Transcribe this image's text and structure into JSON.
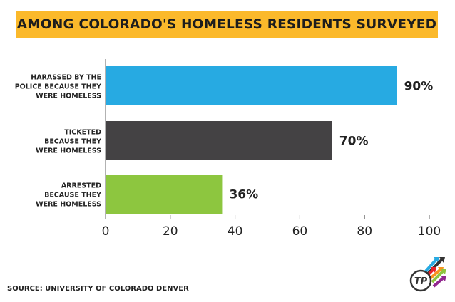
{
  "chart_data": {
    "type": "bar",
    "orientation": "horizontal",
    "title": "AMONG COLORADO'S HOMELESS RESIDENTS SURVEYED",
    "categories": [
      [
        "HARASSED BY THE",
        "POLICE  BECAUSE THEY",
        "WERE HOMELESS"
      ],
      [
        "TICKETED",
        "BECAUSE THEY",
        "WERE HOMELESS"
      ],
      [
        "ARRESTED",
        "BECAUSE THEY",
        "WERE HOMELESS"
      ]
    ],
    "values": [
      90,
      70,
      36
    ],
    "data_labels": [
      "90%",
      "70%",
      "36%"
    ],
    "colors": [
      "#27aae2",
      "#444244",
      "#8dc63f"
    ],
    "xlim": [
      0,
      100
    ],
    "x_ticks": [
      0,
      20,
      40,
      60,
      80,
      100
    ],
    "x_tick_labels": [
      "0",
      "20",
      "40",
      "60",
      "80",
      "100"
    ],
    "grid": false,
    "legend": "none"
  },
  "title_color": "#fbb92b",
  "source": "SOURCE: UNIVERSITY OF COLORADO DENVER",
  "logo": {
    "text": "TP",
    "icon": "thinkprogress-logo"
  }
}
